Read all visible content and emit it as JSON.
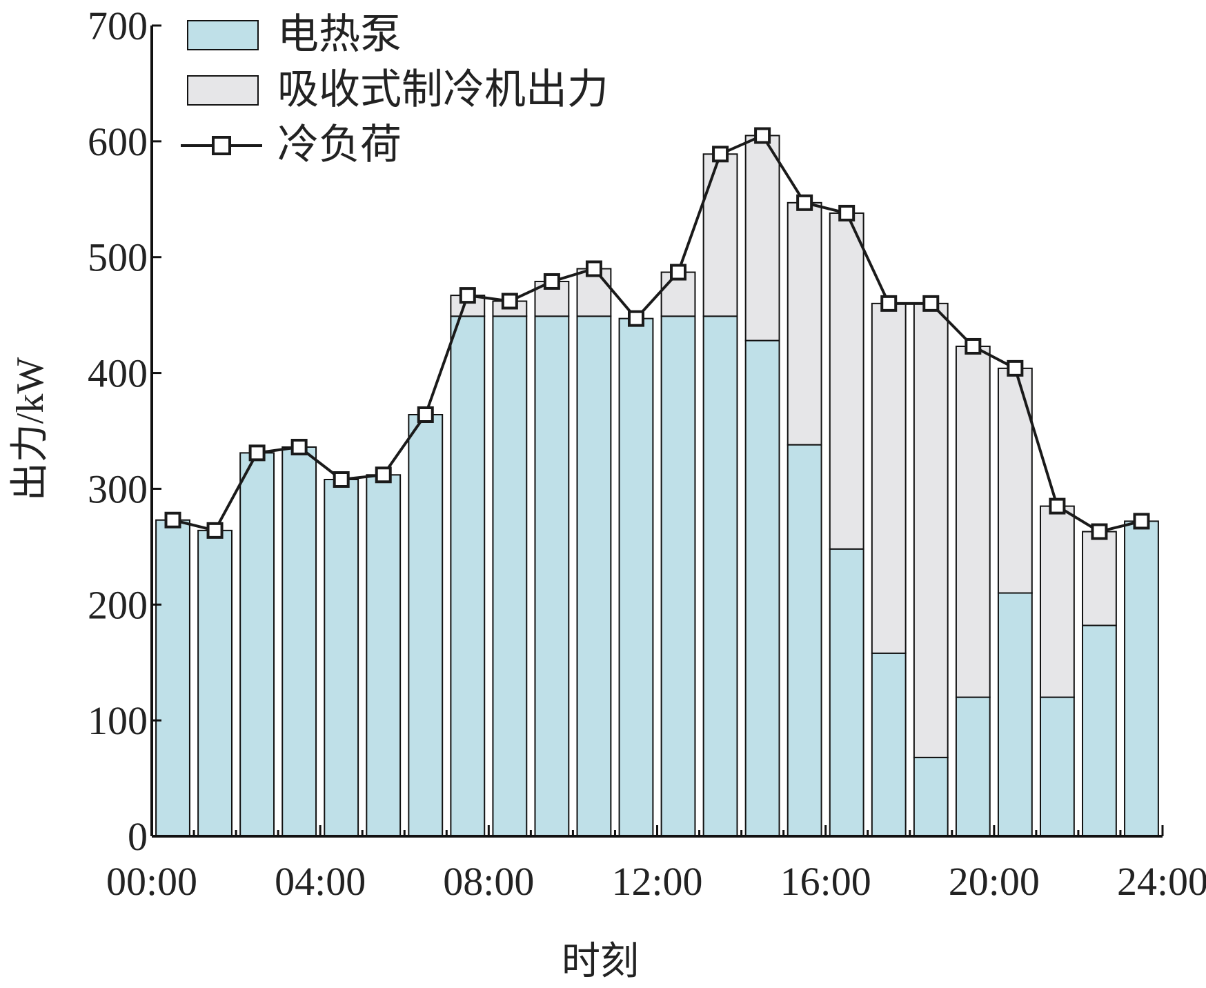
{
  "chart_data": {
    "type": "bar",
    "stacked": true,
    "xlabel": "时刻",
    "ylabel": "出力/kW",
    "ylim": [
      0,
      700
    ],
    "yticks": [
      0,
      100,
      200,
      300,
      400,
      500,
      600,
      700
    ],
    "xlim": [
      0,
      24
    ],
    "xticks": [
      {
        "value": 0,
        "label": "00:00"
      },
      {
        "value": 4,
        "label": "04:00"
      },
      {
        "value": 8,
        "label": "08:00"
      },
      {
        "value": 12,
        "label": "12:00"
      },
      {
        "value": 16,
        "label": "16:00"
      },
      {
        "value": 20,
        "label": "20:00"
      },
      {
        "value": 24,
        "label": "24:00"
      }
    ],
    "hours": [
      1,
      2,
      3,
      4,
      5,
      6,
      7,
      8,
      9,
      10,
      11,
      12,
      13,
      14,
      15,
      16,
      17,
      18,
      19,
      20,
      21,
      22,
      23,
      24
    ],
    "legend_position": "top-left",
    "series": [
      {
        "name": "电热泵",
        "kind": "bar",
        "color": "#bfe0e8",
        "values": [
          273,
          264,
          331,
          336,
          308,
          312,
          364,
          449,
          449,
          449,
          449,
          447,
          449,
          449,
          428,
          338,
          248,
          158,
          68,
          120,
          210,
          120,
          182,
          272
        ]
      },
      {
        "name": "吸收式制冷机出力",
        "kind": "bar",
        "color": "#e6e6e8",
        "values": [
          0,
          0,
          0,
          0,
          0,
          0,
          0,
          18,
          13,
          30,
          41,
          0,
          38,
          140,
          177,
          209,
          290,
          302,
          392,
          303,
          194,
          165,
          81,
          0
        ]
      },
      {
        "name": "冷负荷",
        "kind": "line",
        "color": "#1a1a1a",
        "marker": "square",
        "values": [
          273,
          264,
          331,
          336,
          308,
          312,
          364,
          467,
          462,
          479,
          490,
          447,
          487,
          589,
          605,
          547,
          538,
          460,
          460,
          423,
          404,
          285,
          263,
          272
        ]
      }
    ]
  }
}
